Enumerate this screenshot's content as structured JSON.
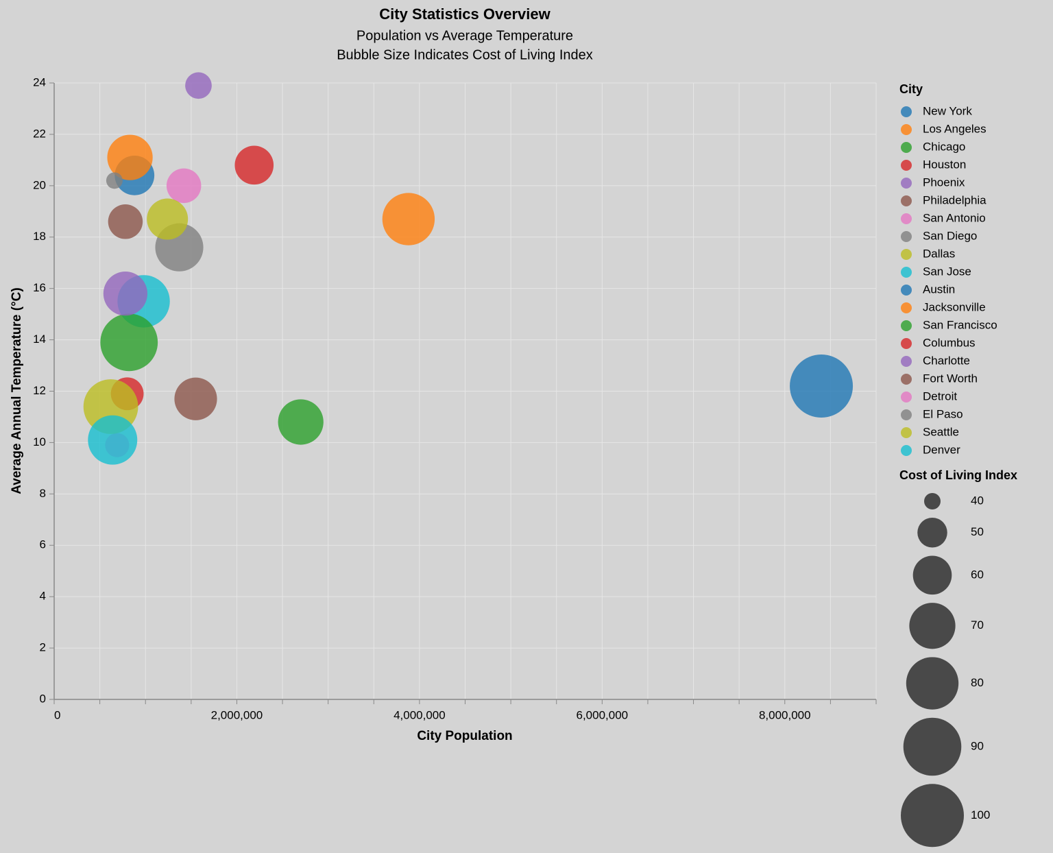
{
  "chart_data": {
    "type": "bubble",
    "title": "City Statistics Overview",
    "subtitle": [
      "Population vs Average Temperature",
      "Bubble Size Indicates Cost of Living Index"
    ],
    "x_label": "City Population",
    "y_label": "Average Annual Temperature (°C)",
    "legend_title": "City",
    "size_legend": {
      "title": "Cost of Living Index",
      "values": [
        40,
        50,
        60,
        70,
        80,
        90,
        100
      ]
    },
    "xlim": [
      0,
      9000000
    ],
    "ylim": [
      0,
      24
    ],
    "xticks": [
      0,
      {
        "value": 2000000,
        "label": "2,000,000"
      },
      {
        "value": 4000000,
        "label": "4,000,000"
      },
      {
        "value": 6000000,
        "label": "6,000,000"
      },
      {
        "value": 8000000,
        "label": "8,000,000"
      }
    ],
    "xgrid": [
      0,
      500000,
      1000000,
      1500000,
      2000000,
      2500000,
      3000000,
      3500000,
      4000000,
      4500000,
      5000000,
      5500000,
      6000000,
      6500000,
      7000000,
      7500000,
      8000000,
      8500000,
      9000000
    ],
    "yticks": [
      0,
      2,
      4,
      6,
      8,
      10,
      12,
      14,
      16,
      18,
      20,
      22,
      24
    ],
    "grid": true,
    "legend_position": "right",
    "series": [
      {
        "name": "New York",
        "color": "#1f77b4",
        "x": [
          8400000
        ],
        "values": [
          12.2
        ],
        "size": [
          100
        ]
      },
      {
        "name": "Los Angeles",
        "color": "#ff7f0e",
        "x": [
          3880000
        ],
        "values": [
          18.7
        ],
        "size": [
          80
        ]
      },
      {
        "name": "Chicago",
        "color": "#2ca02c",
        "x": [
          2700000
        ],
        "values": [
          10.8
        ],
        "size": [
          69
        ]
      },
      {
        "name": "Houston",
        "color": "#d62728",
        "x": [
          2190000
        ],
        "values": [
          20.8
        ],
        "size": [
          60
        ]
      },
      {
        "name": "Phoenix",
        "color": "#9467bd",
        "x": [
          1580000
        ],
        "values": [
          23.9
        ],
        "size": [
          47
        ]
      },
      {
        "name": "Philadelphia",
        "color": "#8c564b",
        "x": [
          1550000
        ],
        "values": [
          11.7
        ],
        "size": [
          65
        ]
      },
      {
        "name": "San Antonio",
        "color": "#e377c2",
        "x": [
          1420000
        ],
        "values": [
          20.0
        ],
        "size": [
          55
        ]
      },
      {
        "name": "San Diego",
        "color": "#7f7f7f",
        "x": [
          1370000
        ],
        "values": [
          17.6
        ],
        "size": [
          73
        ]
      },
      {
        "name": "Dallas",
        "color": "#bcbd22",
        "x": [
          1240000
        ],
        "values": [
          18.7
        ],
        "size": [
          63
        ]
      },
      {
        "name": "San Jose",
        "color": "#17becf",
        "x": [
          980000
        ],
        "values": [
          15.5
        ],
        "size": [
          80
        ]
      },
      {
        "name": "Austin",
        "color": "#1f77b4",
        "x": [
          880000
        ],
        "values": [
          20.4
        ],
        "size": [
          61
        ]
      },
      {
        "name": "Jacksonville",
        "color": "#ff7f0e",
        "x": [
          830000
        ],
        "values": [
          21.1
        ],
        "size": [
          69
        ]
      },
      {
        "name": "San Francisco",
        "color": "#2ca02c",
        "x": [
          820000
        ],
        "values": [
          13.9
        ],
        "size": [
          89
        ]
      },
      {
        "name": "Columbus",
        "color": "#d62728",
        "x": [
          800000
        ],
        "values": [
          11.9
        ],
        "size": [
          53
        ]
      },
      {
        "name": "Charlotte",
        "color": "#9467bd",
        "x": [
          780000
        ],
        "values": [
          15.8
        ],
        "size": [
          67
        ]
      },
      {
        "name": "Fort Worth",
        "color": "#8c564b",
        "x": [
          780000
        ],
        "values": [
          18.6
        ],
        "size": [
          55
        ]
      },
      {
        "name": "Detroit",
        "color": "#e377c2",
        "x": [
          690000
        ],
        "values": [
          9.9
        ],
        "size": [
          45
        ]
      },
      {
        "name": "El Paso",
        "color": "#7f7f7f",
        "x": [
          660000
        ],
        "values": [
          20.2
        ],
        "size": [
          40
        ]
      },
      {
        "name": "Seattle",
        "color": "#bcbd22",
        "x": [
          620000
        ],
        "values": [
          11.4
        ],
        "size": [
          84
        ]
      },
      {
        "name": "Denver",
        "color": "#17becf",
        "x": [
          640000
        ],
        "values": [
          10.1
        ],
        "size": [
          75
        ]
      }
    ]
  }
}
